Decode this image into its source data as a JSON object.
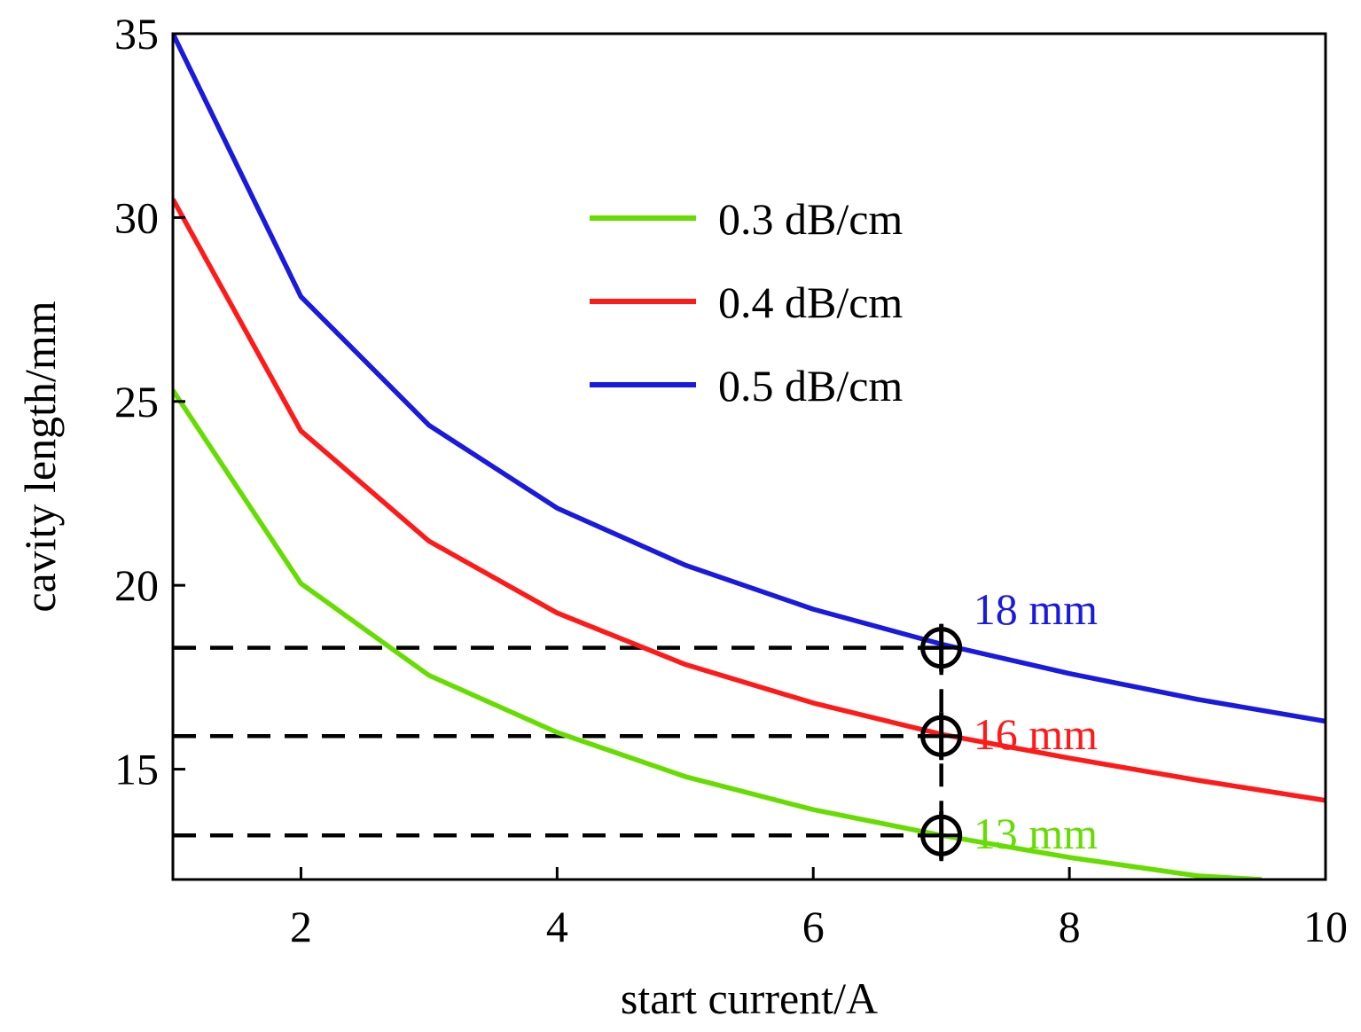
{
  "chart_data": {
    "type": "line",
    "xlabel": "start current/A",
    "ylabel": "cavity length/mm",
    "xlim": [
      1,
      10
    ],
    "ylim": [
      12,
      35
    ],
    "xticks": [
      2,
      4,
      6,
      8,
      10
    ],
    "yticks": [
      15,
      20,
      25,
      30,
      35
    ],
    "grid": false,
    "legend_position": "top-center",
    "series": [
      {
        "name": "0.3 dB/cm",
        "color": "#66dd00",
        "x": [
          1,
          2,
          3,
          4,
          5,
          6,
          7,
          8,
          9,
          9.5
        ],
        "y": [
          25.3,
          20.05,
          17.55,
          16.0,
          14.8,
          13.9,
          13.2,
          12.6,
          12.1,
          12.0
        ]
      },
      {
        "name": "0.4 dB/cm",
        "color": "#ff1a1a",
        "x": [
          1,
          2,
          3,
          4,
          5,
          6,
          7,
          8,
          9,
          10
        ],
        "y": [
          30.5,
          24.2,
          21.2,
          19.25,
          17.85,
          16.8,
          15.95,
          15.3,
          14.7,
          14.15
        ]
      },
      {
        "name": "0.5 dB/cm",
        "color": "#1a1adf",
        "x": [
          1,
          2,
          3,
          4,
          5,
          6,
          7,
          8,
          9,
          10
        ],
        "y": [
          35.0,
          27.85,
          24.35,
          22.1,
          20.55,
          19.35,
          18.4,
          17.6,
          16.9,
          16.3
        ]
      }
    ],
    "reference_lines": [
      {
        "y": 18.3,
        "x_end": 7
      },
      {
        "y": 15.9,
        "x_end": 7
      },
      {
        "y": 13.2,
        "x_end": 7
      }
    ],
    "vertical_reference": {
      "x": 7,
      "y_from": 12.5,
      "y_to": 18.3
    },
    "markers": [
      {
        "x": 7,
        "y": 18.3
      },
      {
        "x": 7,
        "y": 15.9
      },
      {
        "x": 7,
        "y": 13.2
      }
    ],
    "annotations": [
      {
        "text": "18 mm",
        "x": 7.25,
        "y": 19.35,
        "color": "#1a1adf"
      },
      {
        "text": "16 mm",
        "x": 7.25,
        "y": 15.95,
        "color": "#ff1a1a"
      },
      {
        "text": "13 mm",
        "x": 7.25,
        "y": 13.25,
        "color": "#66dd00"
      }
    ]
  }
}
